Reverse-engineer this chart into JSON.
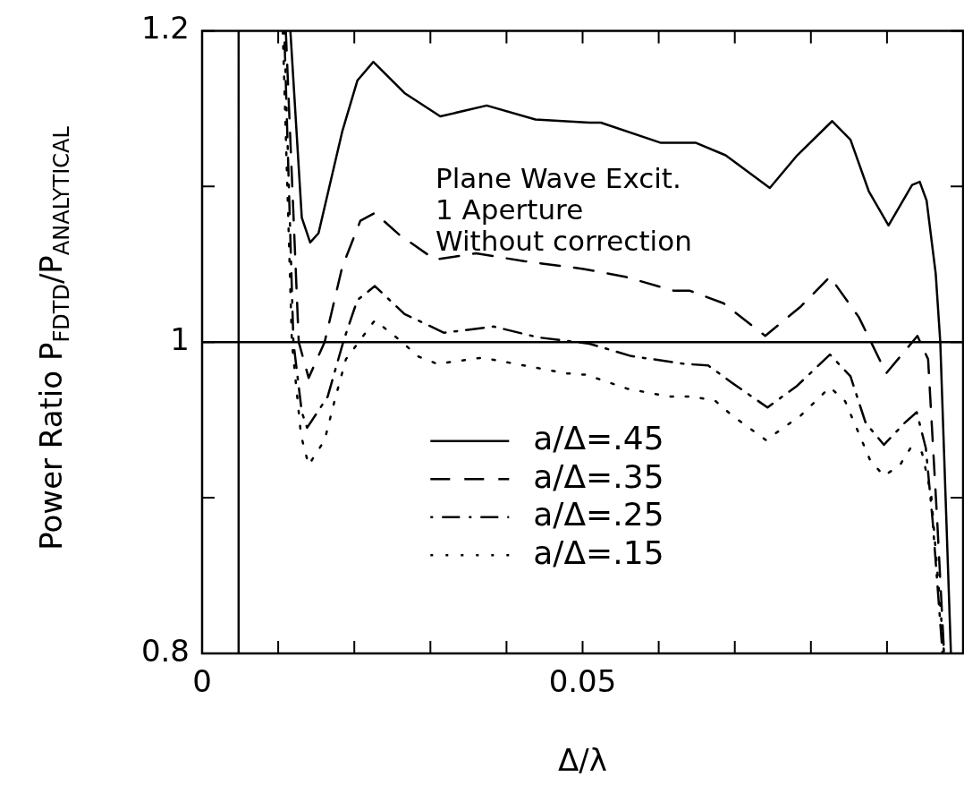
{
  "chart_data": {
    "type": "line",
    "xlabel": "Δ/λ",
    "ylabel": "Power Ratio P$_{FDTD}$/P$_{ANALYTICAL}$",
    "xlim": [
      0,
      0.1
    ],
    "ylim": [
      0.8,
      1.2
    ],
    "xticks": [
      0,
      {
        "value": 0.01,
        "label": null
      },
      {
        "value": 0.02,
        "label": null
      },
      {
        "value": 0.03,
        "label": null
      },
      {
        "value": 0.04,
        "label": null
      },
      0.05,
      {
        "value": 0.06,
        "label": null
      },
      {
        "value": 0.07,
        "label": null
      },
      {
        "value": 0.08,
        "label": null
      },
      {
        "value": 0.09,
        "label": null
      }
    ],
    "yticks": [
      0.8,
      {
        "value": 0.9,
        "label": null
      },
      1,
      {
        "value": 1.1,
        "label": null
      },
      1.2
    ],
    "grid": false,
    "legend": "bottom",
    "annotations": [
      "Plane Wave Excit.",
      "1 Aperture",
      "Without correction"
    ],
    "ref_lines": [
      {
        "axis": "y",
        "value": 1,
        "color": "#000000"
      }
    ],
    "series": [
      {
        "name": "a/Δ=.45",
        "color": "#000000",
        "line_style": "solid",
        "x": [
          0.0048,
          0.0048,
          null,
          0.0116,
          0.0131,
          0.0142,
          0.0153,
          0.0184,
          0.0204,
          0.0225,
          0.0266,
          0.0313,
          0.0374,
          0.0438,
          0.0509,
          0.0524,
          0.0603,
          0.0649,
          0.0688,
          0.0746,
          0.0782,
          0.0828,
          0.0852,
          0.0876,
          0.0902,
          0.0933,
          0.0943,
          0.0952,
          0.0964,
          0.097,
          0.0984
        ],
        "values": [
          0.8,
          1.2,
          null,
          1.2,
          1.08,
          1.064,
          1.07,
          1.135,
          1.168,
          1.18,
          1.16,
          1.145,
          1.152,
          1.143,
          1.141,
          1.141,
          1.128,
          1.128,
          1.12,
          1.099,
          1.12,
          1.142,
          1.13,
          1.097,
          1.075,
          1.101,
          1.103,
          1.091,
          1.044,
          1.0,
          0.8
        ]
      },
      {
        "name": "a/Δ=.35",
        "color": "#000000",
        "line_style": "dashed",
        "x": [
          0.011,
          0.0127,
          0.014,
          0.0161,
          0.0184,
          0.0208,
          0.0227,
          0.0259,
          0.0306,
          0.036,
          0.0423,
          0.0501,
          0.0556,
          0.062,
          0.0641,
          0.0685,
          0.074,
          0.0787,
          0.0825,
          0.0863,
          0.0899,
          0.094,
          0.0954,
          0.0966,
          0.0975
        ],
        "values": [
          1.2,
          1.0,
          0.977,
          1.0,
          1.048,
          1.078,
          1.083,
          1.069,
          1.053,
          1.057,
          1.052,
          1.047,
          1.042,
          1.033,
          1.033,
          1.025,
          1.004,
          1.023,
          1.042,
          1.016,
          0.98,
          1.004,
          0.989,
          0.885,
          0.8
        ]
      },
      {
        "name": "a/Δ=.25",
        "color": "#000000",
        "line_style": "dashdot",
        "x": [
          0.0108,
          0.012,
          0.0131,
          0.0138,
          0.0165,
          0.0186,
          0.0204,
          0.0227,
          0.0266,
          0.0318,
          0.0383,
          0.0442,
          0.0509,
          0.0564,
          0.0634,
          0.0665,
          0.0696,
          0.0743,
          0.0782,
          0.0825,
          0.0852,
          0.0872,
          0.0896,
          0.0923,
          0.0939,
          0.0951,
          0.096,
          0.0973
        ],
        "values": [
          1.2,
          1.0,
          0.955,
          0.945,
          0.965,
          1.001,
          1.027,
          1.036,
          1.018,
          1.006,
          1.01,
          1.003,
          0.999,
          0.991,
          0.986,
          0.985,
          0.974,
          0.958,
          0.972,
          0.992,
          0.978,
          0.948,
          0.934,
          0.948,
          0.955,
          0.932,
          0.885,
          0.8
        ]
      },
      {
        "name": "a/Δ=.15",
        "color": "#000000",
        "line_style": "dotted",
        "x": [
          0.0106,
          0.0118,
          0.013,
          0.014,
          0.0161,
          0.0175,
          0.0189,
          0.0227,
          0.0263,
          0.0283,
          0.0309,
          0.0368,
          0.0423,
          0.0477,
          0.0505,
          0.0559,
          0.0614,
          0.0646,
          0.0675,
          0.0696,
          0.0741,
          0.0787,
          0.0825,
          0.0845,
          0.0878,
          0.0896,
          0.0917,
          0.0931,
          0.0946,
          0.0958,
          0.0975
        ],
        "values": [
          1.2,
          1.0,
          0.94,
          0.921,
          0.937,
          0.964,
          0.989,
          1.014,
          1.0,
          0.991,
          0.986,
          0.99,
          0.985,
          0.98,
          0.979,
          0.97,
          0.965,
          0.965,
          0.962,
          0.953,
          0.937,
          0.953,
          0.971,
          0.962,
          0.924,
          0.914,
          0.921,
          0.932,
          0.929,
          0.902,
          0.8
        ]
      }
    ]
  }
}
